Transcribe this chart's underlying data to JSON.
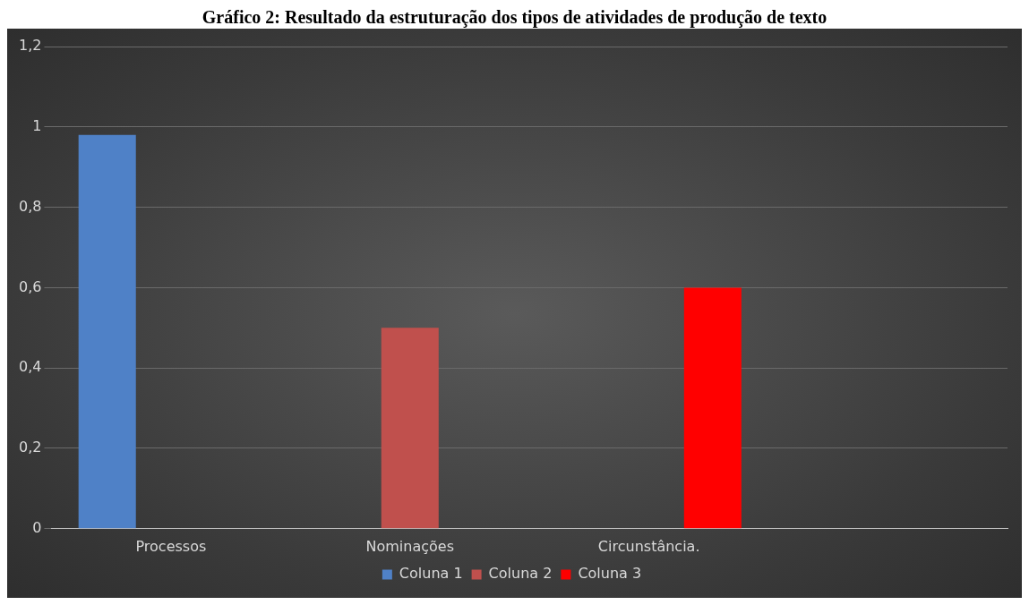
{
  "chart_data": {
    "type": "bar",
    "title": "Gráfico 2: Resultado da estruturação dos tipos de atividades de produção de texto",
    "categories": [
      "Processos",
      "Nominações",
      "Circunstância.",
      null
    ],
    "series": [
      {
        "name": "Coluna 1",
        "color": "#4f81c7",
        "values": [
          0.98,
          null,
          null,
          null
        ]
      },
      {
        "name": "Coluna 2",
        "color": "#c0504d",
        "values": [
          null,
          0.5,
          null,
          null
        ]
      },
      {
        "name": "Coluna 3",
        "color": "#ff0000",
        "values": [
          null,
          null,
          0.6,
          null
        ]
      }
    ],
    "ylim": [
      0,
      1.2
    ],
    "yticks": [
      0,
      {
        "value": 0.2,
        "label": "0,2"
      },
      {
        "value": 0.4,
        "label": "0,4"
      },
      {
        "value": 0.6,
        "label": "0,6"
      },
      {
        "value": 0.8,
        "label": "0,8"
      },
      1,
      {
        "value": 1.2,
        "label": "1,2"
      }
    ],
    "grid": "y",
    "legend": "bottom"
  }
}
